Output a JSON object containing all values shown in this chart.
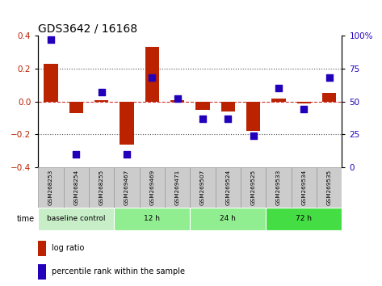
{
  "title": "GDS3642 / 16168",
  "samples": [
    "GSM268253",
    "GSM268254",
    "GSM268255",
    "GSM269467",
    "GSM269469",
    "GSM269471",
    "GSM269507",
    "GSM269524",
    "GSM269525",
    "GSM269533",
    "GSM269534",
    "GSM269535"
  ],
  "log_ratio": [
    0.23,
    -0.07,
    0.01,
    -0.26,
    0.33,
    0.01,
    -0.05,
    -0.06,
    -0.18,
    0.02,
    -0.01,
    0.05
  ],
  "percentile_rank": [
    97,
    10,
    57,
    10,
    68,
    52,
    37,
    37,
    24,
    60,
    44,
    68
  ],
  "groups": [
    {
      "label": "baseline control",
      "start": 0,
      "end": 3,
      "color": "#c8eec8"
    },
    {
      "label": "12 h",
      "start": 3,
      "end": 6,
      "color": "#90ee90"
    },
    {
      "label": "24 h",
      "start": 6,
      "end": 9,
      "color": "#90ee90"
    },
    {
      "label": "72 h",
      "start": 9,
      "end": 12,
      "color": "#44dd44"
    }
  ],
  "ylim": [
    -0.4,
    0.4
  ],
  "yticks_left": [
    -0.4,
    -0.2,
    0.0,
    0.2,
    0.4
  ],
  "yticks_right": [
    0,
    25,
    50,
    75,
    100
  ],
  "bar_color": "#bb2200",
  "dot_color": "#2200bb",
  "zero_line_color": "#cc3333",
  "dotted_line_color": "#555555",
  "bar_width": 0.55,
  "dot_size": 28,
  "sample_box_color": "#cccccc",
  "sample_box_edge": "#999999"
}
